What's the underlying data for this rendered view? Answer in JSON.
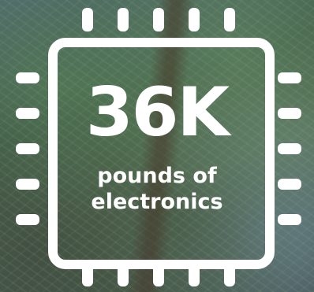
{
  "graphic": {
    "icon": "microchip-icon",
    "stat_value": "36K",
    "stat_label_line1": "pounds of",
    "stat_label_line2": "electronics"
  },
  "colors": {
    "foreground": "#ffffff",
    "background_tone": "#3f5b47"
  }
}
